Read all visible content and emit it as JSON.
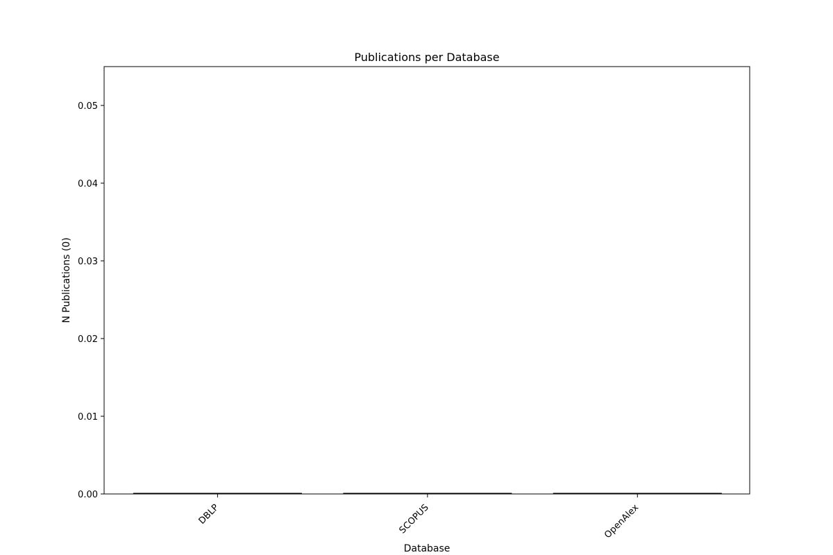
{
  "chart_data": {
    "type": "bar",
    "title": "Publications per Database",
    "xlabel": "Database",
    "ylabel": "N Publications (0)",
    "categories": [
      "DBLP",
      "SCOPUS",
      "OpenAlex"
    ],
    "values": [
      0,
      0,
      0
    ],
    "ylim": [
      0,
      0.055
    ],
    "yticks": [
      0.0,
      0.01,
      0.02,
      0.03,
      0.04,
      0.05
    ],
    "ytick_labels": [
      "0.00",
      "0.01",
      "0.02",
      "0.03",
      "0.04",
      "0.05"
    ],
    "grid": false,
    "legend": "none",
    "bar_color": "#1f77b4"
  }
}
